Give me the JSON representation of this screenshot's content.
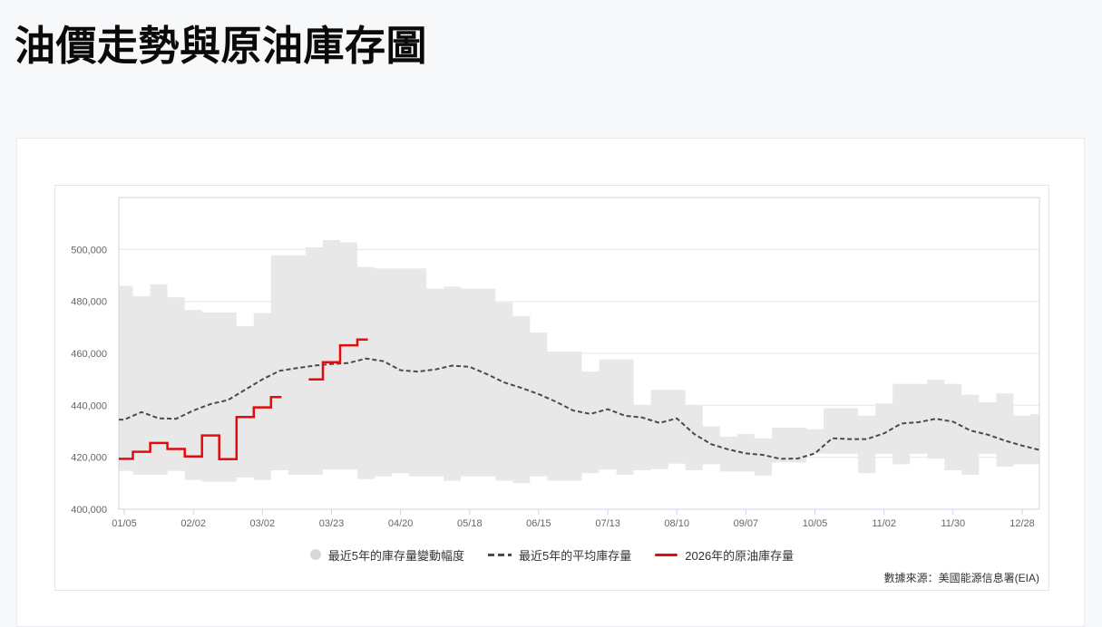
{
  "page": {
    "title": "油價走勢與原油庫存圖"
  },
  "source_note": "數據來源：美國能源信息署(EIA)",
  "legend": {
    "items": [
      {
        "label": "最近5年的庫存量變動幅度",
        "marker": "band-circle",
        "color": "#d9d9d9"
      },
      {
        "label": "最近5年的平均庫存量",
        "marker": "dashed-line",
        "color": "#4a4a4a"
      },
      {
        "label": "2026年的原油庫存量",
        "marker": "solid-line",
        "color": "#e30b0b"
      }
    ]
  },
  "chart_data": {
    "type": "line",
    "title": "",
    "xlabel": "",
    "ylabel": "",
    "grid": true,
    "legend_position": "bottom",
    "num_points": 54,
    "x_tick_labels": [
      "01/05",
      "02/02",
      "03/02",
      "03/23",
      "04/20",
      "05/18",
      "06/15",
      "07/13",
      "08/10",
      "09/07",
      "10/05",
      "11/02",
      "11/30",
      "12/28"
    ],
    "x_tick_indices": [
      0,
      4,
      8,
      12,
      16,
      20,
      24,
      28,
      32,
      36,
      40,
      44,
      48,
      52
    ],
    "y_ticks": [
      400000,
      420000,
      440000,
      460000,
      480000,
      500000
    ],
    "y_tick_labels": [
      "400,000",
      "420,000",
      "440,000",
      "460,000",
      "480,000",
      "500,000"
    ],
    "ylim": [
      400000,
      520000
    ],
    "colors": {
      "band": "#e8e8e8",
      "average": "#4a4a4a",
      "current_year": "#e30b0b",
      "grid": "#e7e7e7",
      "axis": "#ccd6eb",
      "axis_label": "#666666"
    },
    "series": [
      {
        "name": "最近5年的庫存量變動幅度",
        "type": "arearange",
        "color": "#e8e8e8",
        "upper": [
          486000,
          482000,
          486600,
          481600,
          476700,
          475800,
          475800,
          470500,
          475500,
          497700,
          497700,
          500800,
          503600,
          502700,
          493200,
          492700,
          492700,
          492700,
          484900,
          485700,
          484900,
          484900,
          479600,
          474400,
          468000,
          460700,
          460700,
          453000,
          457700,
          457700,
          440100,
          445900,
          445900,
          440100,
          431900,
          427900,
          429000,
          427300,
          431400,
          431400,
          430800,
          438900,
          438900,
          436000,
          440700,
          448200,
          448200,
          449900,
          448200,
          444100,
          441200,
          444600,
          436000,
          436600
        ],
        "lower": [
          414800,
          413300,
          413300,
          414800,
          411300,
          410600,
          410600,
          412200,
          411300,
          415000,
          413300,
          413300,
          415300,
          415300,
          411600,
          412700,
          413900,
          412700,
          412700,
          411000,
          412700,
          412700,
          411000,
          410000,
          412700,
          411000,
          411000,
          413900,
          415300,
          413300,
          415000,
          415500,
          417500,
          415000,
          417300,
          414500,
          414500,
          413000,
          418000,
          418000,
          421400,
          421400,
          421400,
          413900,
          421400,
          417300,
          421400,
          419500,
          415000,
          413300,
          421400,
          416400,
          417300,
          417300
        ]
      },
      {
        "name": "最近5年的平均庫存量",
        "type": "line",
        "style": "dashed",
        "color": "#4a4a4a",
        "values": [
          434500,
          437400,
          435000,
          434800,
          438000,
          440500,
          442000,
          446000,
          450000,
          453300,
          454300,
          455300,
          455900,
          456300,
          458000,
          457000,
          453500,
          453000,
          453800,
          455300,
          454800,
          452000,
          448800,
          446700,
          444300,
          441400,
          438000,
          436700,
          438500,
          436000,
          435300,
          433200,
          435000,
          429000,
          425000,
          423000,
          421500,
          420900,
          419400,
          419500,
          421500,
          427300,
          427000,
          427000,
          429200,
          433000,
          433500,
          434800,
          433700,
          430300,
          428700,
          426400,
          424500,
          422800
        ]
      },
      {
        "name": "2026年的原油庫存量",
        "type": "step-line",
        "color": "#e30b0b",
        "values": [
          419400,
          422100,
          425500,
          423200,
          420300,
          428400,
          419300,
          435500,
          439200,
          443200,
          null,
          450000,
          456600,
          463100,
          465300
        ]
      }
    ]
  }
}
